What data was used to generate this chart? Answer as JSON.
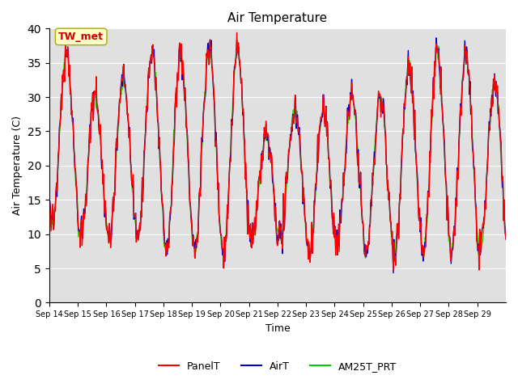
{
  "title": "Air Temperature",
  "xlabel": "Time",
  "ylabel": "Air Temperature (C)",
  "ylim": [
    0,
    40
  ],
  "yticks": [
    0,
    5,
    10,
    15,
    20,
    25,
    30,
    35,
    40
  ],
  "x_labels": [
    "Sep 14",
    "Sep 15",
    "Sep 16",
    "Sep 17",
    "Sep 18",
    "Sep 19",
    "Sep 20",
    "Sep 21",
    "Sep 22",
    "Sep 23",
    "Sep 24",
    "Sep 25",
    "Sep 26",
    "Sep 27",
    "Sep 28",
    "Sep 29"
  ],
  "legend_labels": [
    "PanelT",
    "AirT",
    "AM25T_PRT"
  ],
  "legend_colors": [
    "#ff0000",
    "#0000cc",
    "#00cc00"
  ],
  "annotation_text": "TW_met",
  "annotation_color": "#cc0000",
  "annotation_bg": "#ffffcc",
  "bg_color": "#e0e0e0",
  "line_colors": [
    "#ff0000",
    "#0000cc",
    "#33dd00"
  ],
  "linewidth": 1.0,
  "num_days": 16,
  "points_per_day": 48
}
